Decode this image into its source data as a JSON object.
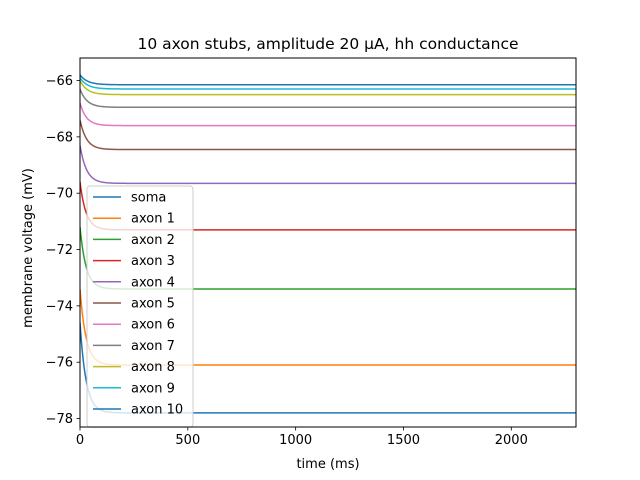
{
  "chart_data": {
    "type": "line",
    "title": "10 axon stubs, amplitude 20 μA, hh conductance",
    "xlabel": "time (ms)",
    "ylabel": "membrane voltage (mV)",
    "xlim": [
      0,
      2300
    ],
    "ylim": [
      -78.3,
      -65.2
    ],
    "xticks": [
      0,
      500,
      1000,
      1500,
      2000
    ],
    "yticks": [
      -78,
      -76,
      -74,
      -72,
      -70,
      -68,
      -66
    ],
    "grid": false,
    "legend_placement": "lower-left",
    "series": [
      {
        "name": "soma",
        "color": "#1f77b4",
        "start": -65.8,
        "steady": -66.15,
        "tau": 35
      },
      {
        "name": "axon 1",
        "color": "#ff7f0e",
        "start": -73.4,
        "steady": -76.1,
        "tau": 28
      },
      {
        "name": "axon 2",
        "color": "#2ca02c",
        "start": -71.2,
        "steady": -73.4,
        "tau": 28
      },
      {
        "name": "axon 3",
        "color": "#d62728",
        "start": -69.6,
        "steady": -71.3,
        "tau": 28
      },
      {
        "name": "axon 4",
        "color": "#9467bd",
        "start": -68.3,
        "steady": -69.65,
        "tau": 30
      },
      {
        "name": "axon 5",
        "color": "#8c564b",
        "start": -67.4,
        "steady": -68.45,
        "tau": 30
      },
      {
        "name": "axon 6",
        "color": "#e377c2",
        "start": -66.8,
        "steady": -67.6,
        "tau": 30
      },
      {
        "name": "axon 7",
        "color": "#7f7f7f",
        "start": -66.3,
        "steady": -66.95,
        "tau": 32
      },
      {
        "name": "axon 8",
        "color": "#bcbd22",
        "start": -66.0,
        "steady": -66.5,
        "tau": 33
      },
      {
        "name": "axon 9",
        "color": "#17becf",
        "start": -65.9,
        "steady": -66.3,
        "tau": 34
      },
      {
        "name": "axon 10",
        "color": "#1f77b4",
        "start": -74.6,
        "steady": -77.8,
        "tau": 28
      }
    ]
  }
}
